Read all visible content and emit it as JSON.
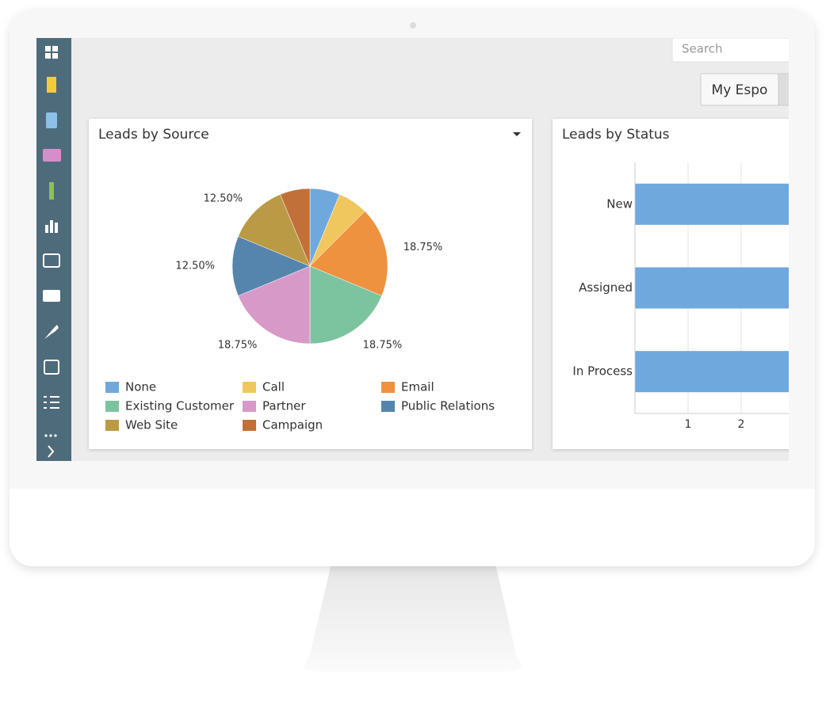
{
  "search_placeholder": "Search",
  "tab": "My Espo",
  "chart_data": [
    {
      "type": "pie",
      "title": "Leads by Source",
      "categories": [
        "None",
        "Call",
        "Email",
        "Existing Customer",
        "Partner",
        "Public Relations",
        "Web Site",
        "Campaign"
      ],
      "values": [
        6.25,
        6.25,
        18.75,
        18.75,
        18.75,
        12.5,
        12.5,
        6.25
      ],
      "value_labels": [
        null,
        null,
        "18.75%",
        "18.75%",
        "18.75%",
        "12.50%",
        "12.50%",
        null
      ],
      "colors": [
        "#6fa8dc",
        "#f0c75e",
        "#ee9240",
        "#7cc4a0",
        "#d79ac8",
        "#5585ad",
        "#bb9a45",
        "#c2703a"
      ]
    },
    {
      "type": "bar",
      "orientation": "horizontal",
      "title": "Leads by Status",
      "categories": [
        "New",
        "Assigned",
        "In Process"
      ],
      "values": [
        3,
        3,
        3
      ],
      "color": "#6fa8dc",
      "xlim": [
        0,
        3
      ],
      "xticks": [
        1,
        2
      ],
      "grid": true
    }
  ]
}
